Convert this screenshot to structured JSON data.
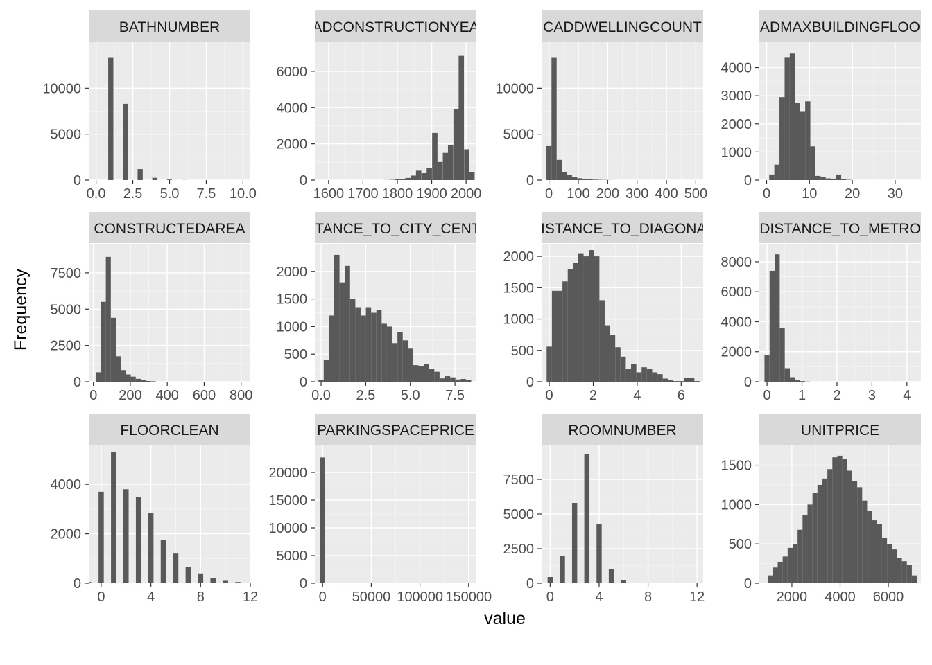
{
  "axes": {
    "xlabel": "value",
    "ylabel": "Frequency"
  },
  "colors": {
    "panel_bg": "#ebebeb",
    "strip_bg": "#d9d9d9",
    "bar": "#595959",
    "grid": "#ffffff"
  },
  "chart_data": [
    {
      "type": "bar",
      "title": "BATHNUMBER",
      "xlim": [
        -0.5,
        10.5
      ],
      "ylim": [
        0,
        15000
      ],
      "xticks": [
        0,
        2.5,
        5,
        7.5,
        10
      ],
      "xtick_labels": [
        "0.0",
        "2.5",
        "5.0",
        "7.5",
        "10.0"
      ],
      "yticks": [
        0,
        5000,
        10000
      ],
      "ytick_labels": [
        "0",
        "5000",
        "10000"
      ],
      "bin_width": 0.35,
      "bins": [
        [
          1,
          13300
        ],
        [
          2,
          8300
        ],
        [
          3,
          1200
        ],
        [
          4,
          250
        ],
        [
          5,
          60
        ],
        [
          6,
          10
        ]
      ]
    },
    {
      "type": "bar",
      "title": "CADCONSTRUCTIONYEAR",
      "xlim": [
        1560,
        2030
      ],
      "ylim": [
        0,
        7600
      ],
      "xticks": [
        1600,
        1700,
        1800,
        1900,
        2000
      ],
      "xtick_labels": [
        "1600",
        "1700",
        "1800",
        "1900",
        "2000"
      ],
      "yticks": [
        0,
        2000,
        4000,
        6000
      ],
      "ytick_labels": [
        "0",
        "2000",
        "4000",
        "6000"
      ],
      "bin_width": 15.5,
      "bins": [
        [
          1769,
          5
        ],
        [
          1785,
          15
        ],
        [
          1800,
          40
        ],
        [
          1816,
          60
        ],
        [
          1831,
          120
        ],
        [
          1847,
          250
        ],
        [
          1862,
          520
        ],
        [
          1878,
          380
        ],
        [
          1893,
          650
        ],
        [
          1909,
          2600
        ],
        [
          1924,
          1000
        ],
        [
          1940,
          1500
        ],
        [
          1955,
          1950
        ],
        [
          1971,
          3900
        ],
        [
          1986,
          6850
        ],
        [
          2002,
          1700
        ],
        [
          2017,
          450
        ]
      ]
    },
    {
      "type": "bar",
      "title": "CADDWELLINGCOUNT",
      "xlim": [
        -25,
        525
      ],
      "ylim": [
        0,
        15000
      ],
      "xticks": [
        0,
        100,
        200,
        300,
        400,
        500
      ],
      "xtick_labels": [
        "0",
        "100",
        "200",
        "300",
        "400",
        "500"
      ],
      "yticks": [
        0,
        5000,
        10000
      ],
      "ytick_labels": [
        "0",
        "5000",
        "10000"
      ],
      "bin_width": 17.5,
      "bins": [
        [
          0,
          3700
        ],
        [
          17.5,
          13300
        ],
        [
          35,
          2200
        ],
        [
          52.5,
          900
        ],
        [
          70,
          600
        ],
        [
          87.5,
          350
        ],
        [
          105,
          200
        ],
        [
          122.5,
          120
        ],
        [
          140,
          80
        ],
        [
          157.5,
          50
        ],
        [
          175,
          30
        ],
        [
          192.5,
          20
        ],
        [
          210,
          10
        ]
      ]
    },
    {
      "type": "bar",
      "title": "CADMAXBUILDINGFLOOR",
      "xlim": [
        -1.7,
        36
      ],
      "ylim": [
        0,
        4900
      ],
      "xticks": [
        0,
        10,
        20,
        30
      ],
      "xtick_labels": [
        "0",
        "10",
        "20",
        "30"
      ],
      "yticks": [
        0,
        1000,
        2000,
        3000,
        4000
      ],
      "ytick_labels": [
        "0",
        "1000",
        "2000",
        "3000",
        "4000"
      ],
      "bin_width": 1.2,
      "bins": [
        [
          1.2,
          200
        ],
        [
          2.4,
          550
        ],
        [
          3.6,
          2950
        ],
        [
          4.8,
          4350
        ],
        [
          6,
          4500
        ],
        [
          7.2,
          2750
        ],
        [
          8.4,
          2450
        ],
        [
          9.6,
          2800
        ],
        [
          10.8,
          1200
        ],
        [
          12,
          150
        ],
        [
          13.2,
          120
        ],
        [
          14.4,
          60
        ],
        [
          15.6,
          50
        ],
        [
          16.8,
          200
        ],
        [
          18,
          30
        ],
        [
          19.2,
          10
        ]
      ]
    },
    {
      "type": "bar",
      "title": "CONSTRUCTEDAREA",
      "xlim": [
        -25,
        850
      ],
      "ylim": [
        0,
        9500
      ],
      "xticks": [
        0,
        200,
        400,
        600,
        800
      ],
      "xtick_labels": [
        "0",
        "200",
        "400",
        "600",
        "800"
      ],
      "yticks": [
        0,
        2500,
        5000,
        7500
      ],
      "ytick_labels": [
        "0",
        "2500",
        "5000",
        "7500"
      ],
      "bin_width": 27,
      "bins": [
        [
          27,
          650
        ],
        [
          54,
          5500
        ],
        [
          81,
          8600
        ],
        [
          108,
          4400
        ],
        [
          135,
          1750
        ],
        [
          162,
          800
        ],
        [
          189,
          500
        ],
        [
          216,
          350
        ],
        [
          243,
          200
        ],
        [
          270,
          100
        ],
        [
          297,
          50
        ],
        [
          324,
          30
        ]
      ]
    },
    {
      "type": "bar",
      "title": "DISTANCE_TO_CITY_CENTER",
      "xlim": [
        -0.35,
        8.7
      ],
      "ylim": [
        0,
        2500
      ],
      "xticks": [
        0,
        2.5,
        5,
        7.5
      ],
      "xtick_labels": [
        "0.0",
        "2.5",
        "5.0",
        "7.5"
      ],
      "yticks": [
        0,
        500,
        1000,
        1500,
        2000
      ],
      "ytick_labels": [
        "0",
        "500",
        "1000",
        "1500",
        "2000"
      ],
      "bin_width": 0.295,
      "bins": [
        [
          0.0,
          30
        ],
        [
          0.295,
          400
        ],
        [
          0.59,
          1200
        ],
        [
          0.885,
          2300
        ],
        [
          1.18,
          1800
        ],
        [
          1.475,
          2100
        ],
        [
          1.77,
          1500
        ],
        [
          2.065,
          1350
        ],
        [
          2.36,
          1200
        ],
        [
          2.655,
          1350
        ],
        [
          2.95,
          1250
        ],
        [
          3.245,
          1300
        ],
        [
          3.54,
          1050
        ],
        [
          3.835,
          1000
        ],
        [
          4.13,
          700
        ],
        [
          4.425,
          900
        ],
        [
          4.72,
          750
        ],
        [
          5.015,
          600
        ],
        [
          5.31,
          300
        ],
        [
          5.605,
          280
        ],
        [
          5.9,
          320
        ],
        [
          6.195,
          230
        ],
        [
          6.49,
          180
        ],
        [
          6.785,
          60
        ],
        [
          7.08,
          100
        ],
        [
          7.375,
          80
        ],
        [
          7.67,
          40
        ],
        [
          7.965,
          50
        ],
        [
          8.26,
          30
        ]
      ]
    },
    {
      "type": "bar",
      "title": "DISTANCE_TO_DIAGONAL",
      "xlim": [
        -0.35,
        7
      ],
      "ylim": [
        0,
        2200
      ],
      "xticks": [
        0,
        2,
        4,
        6
      ],
      "xtick_labels": [
        "0",
        "2",
        "4",
        "6"
      ],
      "yticks": [
        0,
        500,
        1000,
        1500,
        2000
      ],
      "ytick_labels": [
        "0",
        "500",
        "1000",
        "1500",
        "2000"
      ],
      "bin_width": 0.24,
      "bins": [
        [
          0.0,
          560
        ],
        [
          0.24,
          1450
        ],
        [
          0.48,
          1450
        ],
        [
          0.72,
          1600
        ],
        [
          0.96,
          1800
        ],
        [
          1.2,
          1900
        ],
        [
          1.44,
          2050
        ],
        [
          1.68,
          2000
        ],
        [
          1.92,
          2100
        ],
        [
          2.16,
          2000
        ],
        [
          2.4,
          1300
        ],
        [
          2.64,
          900
        ],
        [
          2.88,
          750
        ],
        [
          3.12,
          550
        ],
        [
          3.36,
          400
        ],
        [
          3.6,
          200
        ],
        [
          3.84,
          280
        ],
        [
          4.08,
          150
        ],
        [
          4.32,
          230
        ],
        [
          4.56,
          200
        ],
        [
          4.8,
          150
        ],
        [
          5.04,
          120
        ],
        [
          5.28,
          50
        ],
        [
          5.52,
          30
        ],
        [
          5.76,
          10
        ],
        [
          6.0,
          10
        ],
        [
          6.24,
          60
        ],
        [
          6.48,
          60
        ],
        [
          6.72,
          10
        ]
      ]
    },
    {
      "type": "bar",
      "title": "DISTANCE_TO_METRO",
      "xlim": [
        -0.22,
        4.4
      ],
      "ylim": [
        0,
        9200
      ],
      "xticks": [
        0,
        1,
        2,
        3,
        4
      ],
      "xtick_labels": [
        "0",
        "1",
        "2",
        "3",
        "4"
      ],
      "yticks": [
        0,
        2000,
        4000,
        6000,
        8000
      ],
      "ytick_labels": [
        "0",
        "2000",
        "4000",
        "6000",
        "8000"
      ],
      "bin_width": 0.145,
      "bins": [
        [
          0.0,
          1800
        ],
        [
          0.145,
          7400
        ],
        [
          0.29,
          8500
        ],
        [
          0.435,
          3600
        ],
        [
          0.58,
          900
        ],
        [
          0.725,
          300
        ],
        [
          0.87,
          100
        ],
        [
          1.015,
          40
        ],
        [
          1.16,
          10
        ]
      ]
    },
    {
      "type": "bar",
      "title": "FLOORCLEAN",
      "xlim": [
        -1,
        12
      ],
      "ylim": [
        0,
        5600
      ],
      "xticks": [
        0,
        4,
        8,
        12
      ],
      "xtick_labels": [
        "0",
        "4",
        "8",
        "12"
      ],
      "yticks": [
        0,
        2000,
        4000
      ],
      "ytick_labels": [
        "0",
        "2000",
        "4000"
      ],
      "bin_width": 0.42,
      "bins": [
        [
          -1,
          50
        ],
        [
          0,
          3700
        ],
        [
          1,
          5300
        ],
        [
          2,
          3800
        ],
        [
          3,
          3500
        ],
        [
          4,
          2850
        ],
        [
          5,
          1750
        ],
        [
          6,
          1200
        ],
        [
          7,
          650
        ],
        [
          8,
          400
        ],
        [
          9,
          200
        ],
        [
          10,
          100
        ],
        [
          11,
          50
        ]
      ]
    },
    {
      "type": "bar",
      "title": "PARKINGSPACEPRICE",
      "xlim": [
        -8000,
        158000
      ],
      "ylim": [
        0,
        25000
      ],
      "xticks": [
        0,
        50000,
        100000,
        150000
      ],
      "xtick_labels": [
        "0",
        "50000",
        "100000",
        "150000"
      ],
      "yticks": [
        0,
        5000,
        10000,
        15000,
        20000
      ],
      "ytick_labels": [
        "0",
        "5000",
        "10000",
        "15000",
        "20000"
      ],
      "bin_width": 5200,
      "bins": [
        [
          0,
          22700
        ],
        [
          15000,
          50
        ],
        [
          20000,
          100
        ],
        [
          25000,
          80
        ],
        [
          30000,
          30
        ]
      ]
    },
    {
      "type": "bar",
      "title": "ROOMNUMBER",
      "xlim": [
        -0.7,
        12.5
      ],
      "ylim": [
        0,
        10000
      ],
      "xticks": [
        0,
        4,
        8,
        12
      ],
      "xtick_labels": [
        "0",
        "4",
        "8",
        "12"
      ],
      "yticks": [
        0,
        2500,
        5000,
        7500
      ],
      "ytick_labels": [
        "0",
        "2500",
        "5000",
        "7500"
      ],
      "bin_width": 0.42,
      "bins": [
        [
          0,
          450
        ],
        [
          1,
          2000
        ],
        [
          2,
          5800
        ],
        [
          3,
          9300
        ],
        [
          4,
          4300
        ],
        [
          5,
          1000
        ],
        [
          6,
          250
        ],
        [
          7,
          50
        ],
        [
          8,
          20
        ]
      ]
    },
    {
      "type": "bar",
      "title": "UNITPRICE",
      "xlim": [
        650,
        7350
      ],
      "ylim": [
        0,
        1760
      ],
      "xticks": [
        2000,
        4000,
        6000
      ],
      "xtick_labels": [
        "2000",
        "4000",
        "6000"
      ],
      "yticks": [
        0,
        500,
        1000,
        1500
      ],
      "ytick_labels": [
        "0",
        "500",
        "1000",
        "1500"
      ],
      "bin_width": 206,
      "bins": [
        [
          1103,
          100
        ],
        [
          1309,
          200
        ],
        [
          1515,
          270
        ],
        [
          1721,
          340
        ],
        [
          1927,
          450
        ],
        [
          2133,
          500
        ],
        [
          2339,
          680
        ],
        [
          2545,
          870
        ],
        [
          2751,
          1000
        ],
        [
          2957,
          1150
        ],
        [
          3163,
          1250
        ],
        [
          3369,
          1330
        ],
        [
          3575,
          1450
        ],
        [
          3781,
          1600
        ],
        [
          3987,
          1620
        ],
        [
          4193,
          1580
        ],
        [
          4399,
          1430
        ],
        [
          4605,
          1300
        ],
        [
          4811,
          1220
        ],
        [
          5017,
          1050
        ],
        [
          5223,
          920
        ],
        [
          5429,
          800
        ],
        [
          5635,
          750
        ],
        [
          5841,
          580
        ],
        [
          6047,
          500
        ],
        [
          6253,
          430
        ],
        [
          6459,
          320
        ],
        [
          6665,
          280
        ],
        [
          6871,
          230
        ],
        [
          7077,
          100
        ]
      ]
    }
  ]
}
